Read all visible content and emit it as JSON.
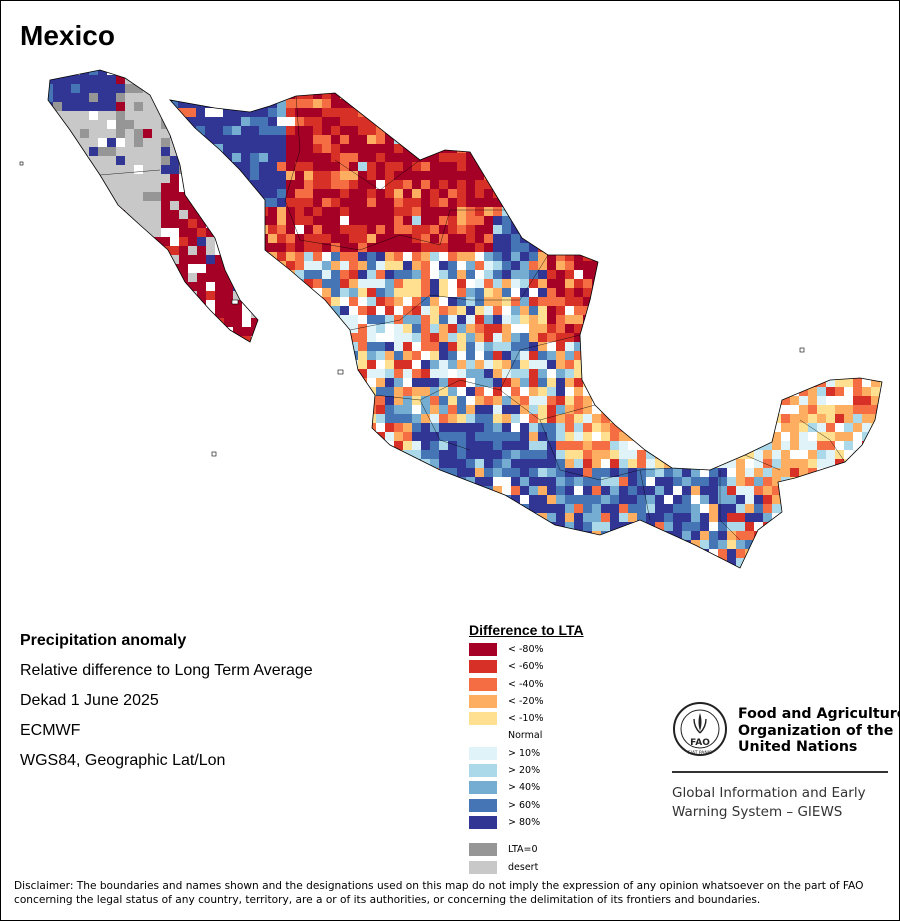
{
  "map": {
    "title": "Mexico",
    "palette": {
      "lt_minus80": "#a50026",
      "lt_minus60": "#d73027",
      "lt_minus40": "#f46d43",
      "lt_minus20": "#fdae61",
      "lt_minus10": "#fee090",
      "normal": "#ffffff",
      "gt10": "#e0f3f8",
      "gt20": "#abd9e9",
      "gt40": "#74add1",
      "gt60": "#4575b4",
      "gt80": "#313695",
      "lta0": "#969696",
      "desert": "#c8c8c8"
    }
  },
  "info": {
    "heading": "Precipitation anomaly",
    "line1": "Relative difference to Long Term Average",
    "line2": "Dekad 1 June 2025",
    "line3": "ECMWF",
    "line4": "WGS84, Geographic Lat/Lon"
  },
  "legend": {
    "title": "Difference to LTA",
    "items": [
      {
        "label": "< -80%",
        "color": "#a50026"
      },
      {
        "label": "< -60%",
        "color": "#d73027"
      },
      {
        "label": "< -40%",
        "color": "#f46d43"
      },
      {
        "label": "< -20%",
        "color": "#fdae61"
      },
      {
        "label": "< -10%",
        "color": "#fee090"
      },
      {
        "label": "Normal",
        "color": "#ffffff"
      },
      {
        "label": "> 10%",
        "color": "#e0f3f8"
      },
      {
        "label": "> 20%",
        "color": "#abd9e9"
      },
      {
        "label": "> 40%",
        "color": "#74add1"
      },
      {
        "label": "> 60%",
        "color": "#4575b4"
      },
      {
        "label": "> 80%",
        "color": "#313695"
      }
    ],
    "extra": [
      {
        "label": "LTA=0",
        "color": "#969696"
      },
      {
        "label": "desert",
        "color": "#c8c8c8"
      }
    ]
  },
  "fao": {
    "name_line1": "Food and Agriculture",
    "name_line2": "Organization of the",
    "name_line3": "United Nations",
    "giews": "Global Information and Early\nWarning System – GIEWS",
    "logo_text": "FAO",
    "logo_motto": "FIAT PANIS"
  },
  "disclaimer": "Disclaimer: The boundaries and names shown and the designations used on this map do not imply the expression of any opinion whatsoever on the part of FAO concerning the legal status of any country, territory, are a or of its authorities, or concerning the delimitation of its frontiers and boundaries."
}
